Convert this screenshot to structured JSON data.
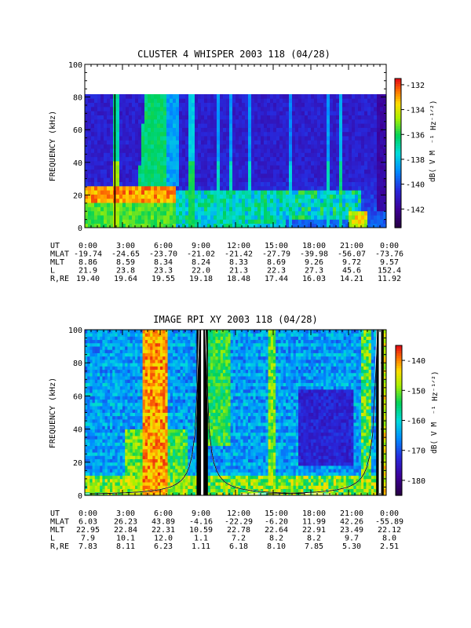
{
  "chart_data": [
    {
      "type": "heatmap",
      "title": "CLUSTER 4 WHISPER 2003 118 (04/28)",
      "ylabel": "FREQUENCY (kHz)",
      "ylim": [
        0,
        100
      ],
      "yticks": [
        "0",
        "20",
        "40",
        "60",
        "80",
        "100"
      ],
      "data_ylim": [
        0,
        80
      ],
      "colorbar": {
        "label": "dB( V M⁻¹ Hz⁻¹ᐟ²)",
        "label_text": "dB( V M",
        "range": [
          -143.5,
          -131.5
        ],
        "ticks": [
          "-132",
          "-134",
          "-136",
          "-138",
          "-140",
          "-142"
        ],
        "tick_values": [
          -132,
          -134,
          -136,
          -138,
          -140,
          -142
        ]
      },
      "ephemeris": {
        "labels": [
          "UT",
          "MLAT",
          "MLT",
          "L",
          "R,RE"
        ],
        "columns": [
          [
            "0:00",
            "-19.74",
            "8.86",
            "21.9",
            "19.40"
          ],
          [
            "3:00",
            "-24.65",
            "8.59",
            "23.8",
            "19.64"
          ],
          [
            "6:00",
            "-23.70",
            "8.34",
            "23.3",
            "19.55"
          ],
          [
            "9:00",
            "-21.02",
            "8.24",
            "22.0",
            "19.18"
          ],
          [
            "12:00",
            "-21.42",
            "8.33",
            "21.3",
            "18.48"
          ],
          [
            "15:00",
            "-27.79",
            "8.69",
            "22.3",
            "17.44"
          ],
          [
            "18:00",
            "-39.98",
            "9.26",
            "27.3",
            "16.03"
          ],
          [
            "21:00",
            "-56.07",
            "9.72",
            "45.6",
            "14.21"
          ],
          [
            "0:00",
            "-73.76",
            "9.57",
            "152.4",
            "11.92"
          ]
        ]
      },
      "features": [
        {
          "kind": "band",
          "t0": 0.0,
          "t1": 7.2,
          "f": 18,
          "level": -132
        },
        {
          "kind": "emission",
          "t0": 4.2,
          "t1": 6.2,
          "f0": 28,
          "f1": 80,
          "level": -137
        }
      ]
    },
    {
      "type": "heatmap",
      "title": "IMAGE RPI XY 2003 118 (04/28)",
      "ylabel": "FREQUENCY (kHz)",
      "ylim": [
        0,
        100
      ],
      "yticks": [
        "0",
        "20",
        "40",
        "60",
        "80",
        "100"
      ],
      "colorbar": {
        "label": "dB( V M⁻¹ Hz⁻¹ᐟ²)",
        "label_text": "dB( V M",
        "range": [
          -185,
          -135
        ],
        "ticks": [
          "-140",
          "-150",
          "-160",
          "-170",
          "-180"
        ],
        "tick_values": [
          -140,
          -150,
          -160,
          -170,
          -180
        ]
      },
      "ephemeris": {
        "labels": [
          "UT",
          "MLAT",
          "MLT",
          "L",
          "R,RE"
        ],
        "columns": [
          [
            "0:00",
            "6.03",
            "22.95",
            "7.9",
            "7.83"
          ],
          [
            "3:00",
            "26.23",
            "22.84",
            "10.1",
            "8.11"
          ],
          [
            "6:00",
            "43.89",
            "22.31",
            "12.0",
            "6.23"
          ],
          [
            "9:00",
            "-4.16",
            "10.59",
            "1.1",
            "1.11"
          ],
          [
            "12:00",
            "-22.29",
            "22.78",
            "7.2",
            "6.18"
          ],
          [
            "15:00",
            "-6.20",
            "22.64",
            "8.2",
            "8.10"
          ],
          [
            "18:00",
            "11.99",
            "22.91",
            "8.2",
            "7.85"
          ],
          [
            "21:00",
            "42.26",
            "23.49",
            "9.7",
            "5.30"
          ],
          [
            "0:00",
            "-55.89",
            "22.12",
            "8.0",
            "2.51"
          ]
        ]
      },
      "features": [
        {
          "kind": "band",
          "t0": 4.6,
          "t1": 6.6,
          "f0": 20,
          "f1": 100,
          "level": -140
        },
        {
          "kind": "perigee",
          "t": 9.3
        },
        {
          "kind": "perigee",
          "t": 23.6
        }
      ]
    }
  ]
}
